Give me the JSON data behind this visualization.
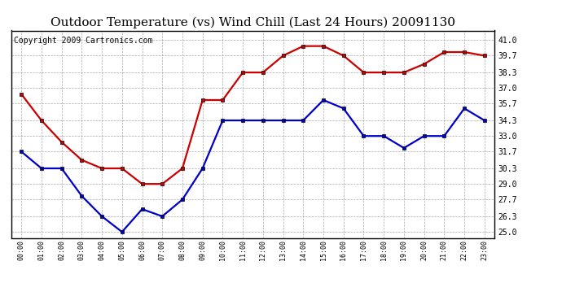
{
  "title": "Outdoor Temperature (vs) Wind Chill (Last 24 Hours) 20091130",
  "copyright": "Copyright 2009 Cartronics.com",
  "hours": [
    "00:00",
    "01:00",
    "02:00",
    "03:00",
    "04:00",
    "05:00",
    "06:00",
    "07:00",
    "08:00",
    "09:00",
    "10:00",
    "11:00",
    "12:00",
    "13:00",
    "14:00",
    "15:00",
    "16:00",
    "17:00",
    "18:00",
    "19:00",
    "20:00",
    "21:00",
    "22:00",
    "23:00"
  ],
  "red_temp": [
    36.5,
    34.3,
    32.5,
    31.0,
    30.3,
    30.3,
    29.0,
    29.0,
    30.3,
    36.0,
    36.0,
    38.3,
    38.3,
    39.7,
    40.5,
    40.5,
    39.7,
    38.3,
    38.3,
    38.3,
    39.0,
    40.0,
    40.0,
    39.7
  ],
  "blue_chill": [
    31.7,
    30.3,
    30.3,
    28.0,
    26.3,
    25.0,
    26.9,
    26.3,
    27.7,
    30.3,
    34.3,
    34.3,
    34.3,
    34.3,
    34.3,
    36.0,
    35.3,
    33.0,
    33.0,
    32.0,
    33.0,
    33.0,
    35.3,
    34.3
  ],
  "red_color": "#cc0000",
  "blue_color": "#0000cc",
  "bg_color": "#ffffff",
  "grid_color": "#aaaaaa",
  "yticks": [
    25.0,
    26.3,
    27.7,
    29.0,
    30.3,
    31.7,
    33.0,
    34.3,
    35.7,
    37.0,
    38.3,
    39.7,
    41.0
  ],
  "ylim": [
    24.5,
    41.8
  ],
  "title_fontsize": 11,
  "copyright_fontsize": 7,
  "marker_size": 3.5,
  "linewidth": 1.6
}
